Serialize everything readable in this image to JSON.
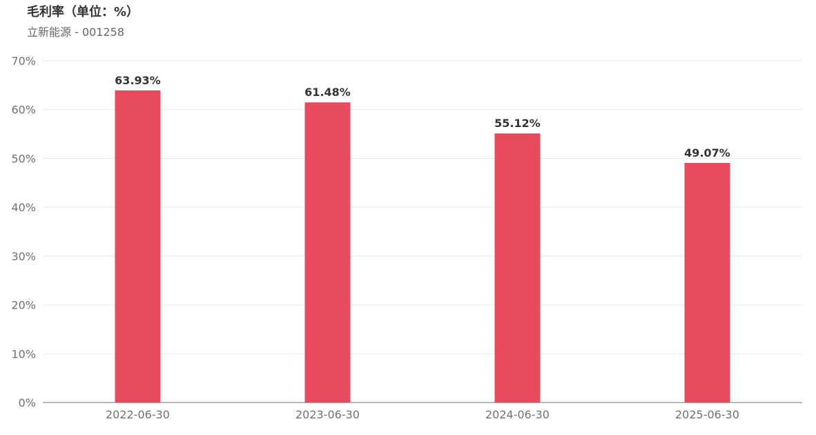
{
  "header": {
    "title": "毛利率（单位：%）",
    "subtitle": "立新能源 - 001258"
  },
  "chart_data": {
    "type": "bar",
    "categories": [
      "2022-06-30",
      "2023-06-30",
      "2024-06-30",
      "2025-06-30"
    ],
    "values": [
      63.93,
      61.48,
      55.12,
      49.07
    ],
    "data_labels": [
      "63.93%",
      "61.48%",
      "55.12%",
      "49.07%"
    ],
    "yticks": [
      "0%",
      "10%",
      "20%",
      "30%",
      "40%",
      "50%",
      "60%",
      "70%"
    ],
    "ylim": [
      0,
      70
    ],
    "grid": true,
    "bar_color": "#e64b5e"
  }
}
